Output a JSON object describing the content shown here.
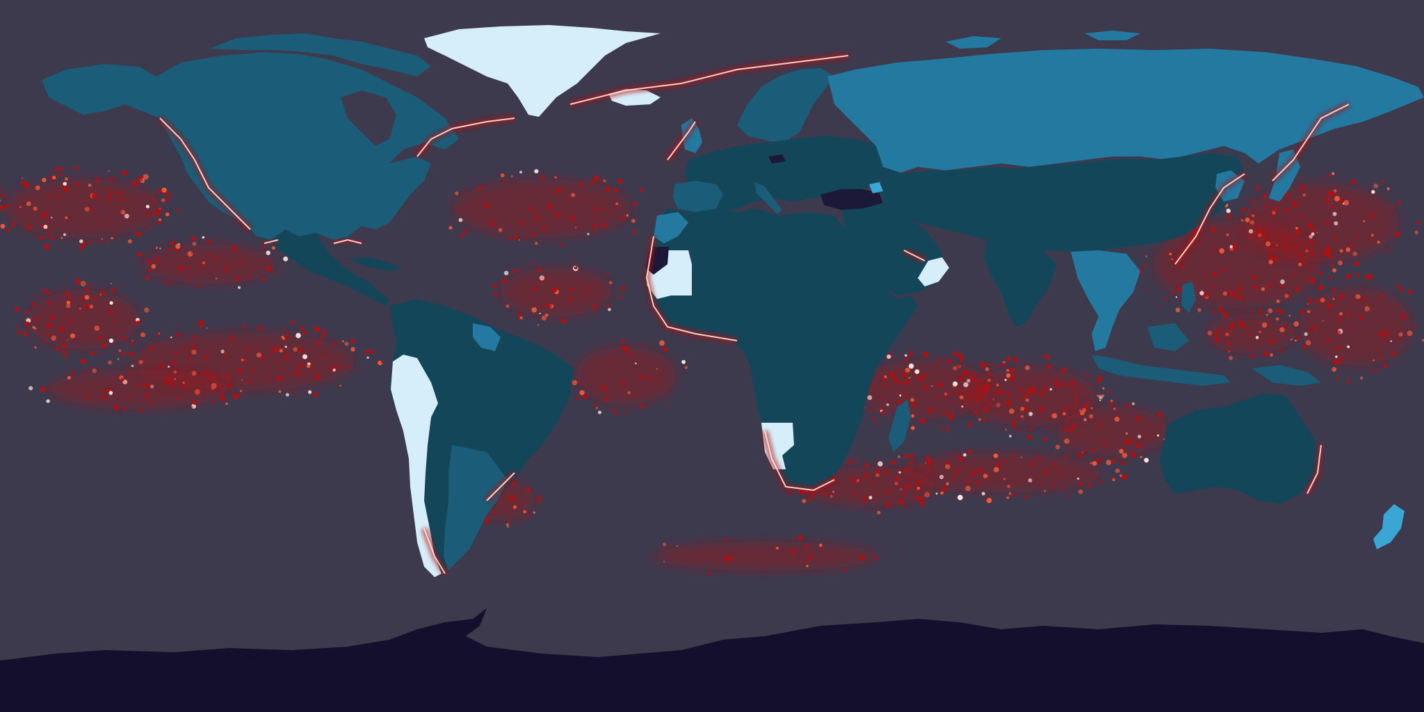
{
  "map": {
    "projection": "equirectangular",
    "extent": {
      "lon": [
        -180,
        180
      ],
      "lat": [
        -90,
        90
      ]
    },
    "colors": {
      "ocean": "#3e3a4e",
      "antarctica": "#140f2c",
      "land_very_dark": "#1b1838",
      "land_dark": "#14465a",
      "land_mid": "#1b5d78",
      "land_light": "#2379a0",
      "land_bright": "#3aa6d6",
      "land_pale": "#d6eef9",
      "heat_red": "#b40e0e",
      "heat_orange": "#f05a3a",
      "heat_white": "#ffe8e0"
    }
  }
}
